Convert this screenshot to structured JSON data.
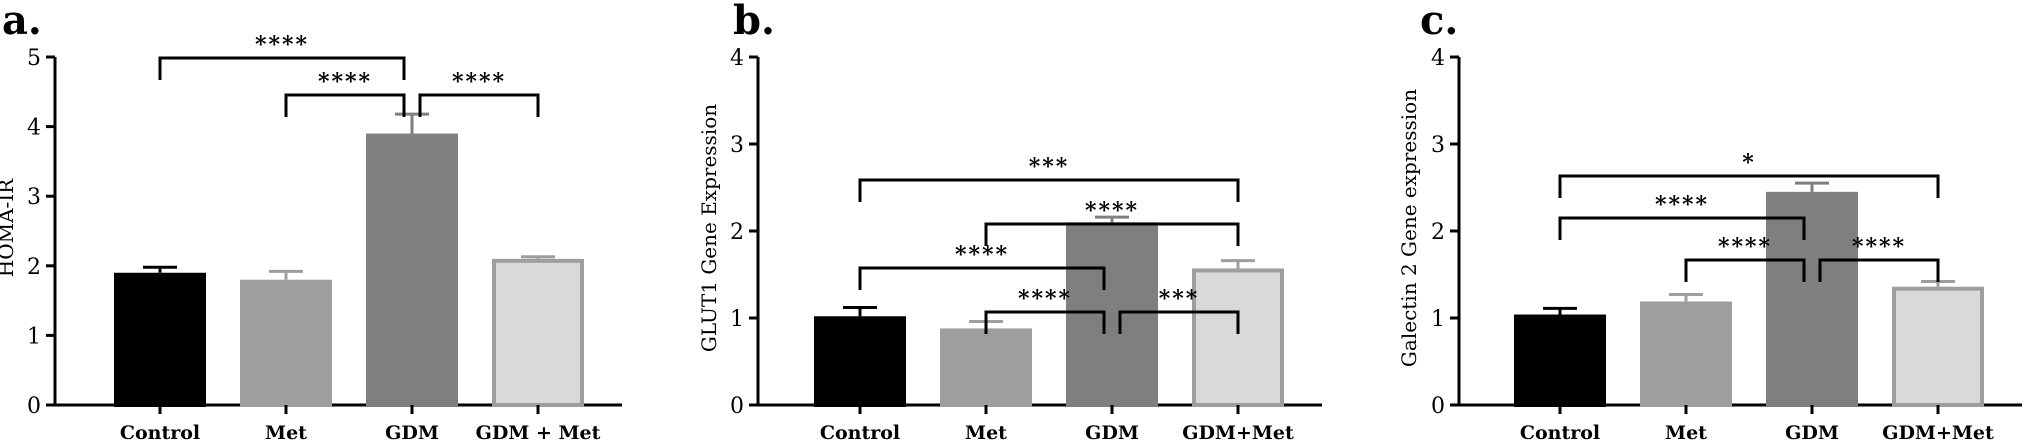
{
  "chart_data": [
    {
      "type": "bar",
      "panel_label": "a.",
      "ylabel": "HOMA-IR",
      "ylim": [
        0,
        5
      ],
      "yticks": [
        "0",
        "1",
        "2",
        "3",
        "4",
        "5"
      ],
      "categories": [
        "Control",
        "Met",
        "GDM",
        "GDM + Met"
      ],
      "values": [
        1.9,
        1.8,
        3.9,
        2.1
      ],
      "errors": [
        0.08,
        0.12,
        0.28,
        0.03
      ],
      "bar_colors": [
        "#000000",
        "#9e9e9e",
        "#7f7f7f",
        "#d9d9d9"
      ],
      "bar_borders": [
        "#000000",
        "#9e9e9e",
        "#7f7f7f",
        "#9e9e9e"
      ],
      "significance": [
        {
          "from": 0,
          "to": 2,
          "label": "****"
        },
        {
          "from": 1,
          "to": 2,
          "label": "****"
        },
        {
          "from": 2,
          "to": 3,
          "label": "****"
        }
      ]
    },
    {
      "type": "bar",
      "panel_label": "b.",
      "ylabel": "GLUT1 Gene Expression",
      "ylim": [
        0,
        4
      ],
      "yticks": [
        "0",
        "1",
        "2",
        "3",
        "4"
      ],
      "categories": [
        "Control",
        "Met",
        "GDM",
        "GDM+Met"
      ],
      "values": [
        1.02,
        0.88,
        2.1,
        1.57
      ],
      "errors": [
        0.1,
        0.08,
        0.06,
        0.09
      ],
      "bar_colors": [
        "#000000",
        "#9e9e9e",
        "#7f7f7f",
        "#d9d9d9"
      ],
      "bar_borders": [
        "#000000",
        "#9e9e9e",
        "#7f7f7f",
        "#9e9e9e"
      ],
      "significance": [
        {
          "from": 0,
          "to": 3,
          "label": "***"
        },
        {
          "from": 1,
          "to": 3,
          "label": "****"
        },
        {
          "from": 0,
          "to": 2,
          "label": "****"
        },
        {
          "from": 1,
          "to": 2,
          "label": "****"
        },
        {
          "from": 2,
          "to": 3,
          "label": "***"
        }
      ]
    },
    {
      "type": "bar",
      "panel_label": "c.",
      "ylabel": "Galectin 2 Gene expression",
      "ylim": [
        0,
        4
      ],
      "yticks": [
        "0",
        "1",
        "2",
        "3",
        "4"
      ],
      "categories": [
        "Control",
        "Met",
        "GDM",
        "GDM+Met"
      ],
      "values": [
        1.04,
        1.19,
        2.45,
        1.36
      ],
      "errors": [
        0.07,
        0.08,
        0.1,
        0.06
      ],
      "bar_colors": [
        "#000000",
        "#9e9e9e",
        "#7f7f7f",
        "#d9d9d9"
      ],
      "bar_borders": [
        "#000000",
        "#9e9e9e",
        "#7f7f7f",
        "#9e9e9e"
      ],
      "significance": [
        {
          "from": 0,
          "to": 3,
          "label": "*"
        },
        {
          "from": 0,
          "to": 2,
          "label": "****"
        },
        {
          "from": 1,
          "to": 2,
          "label": "****"
        },
        {
          "from": 2,
          "to": 3,
          "label": "****"
        }
      ]
    }
  ]
}
